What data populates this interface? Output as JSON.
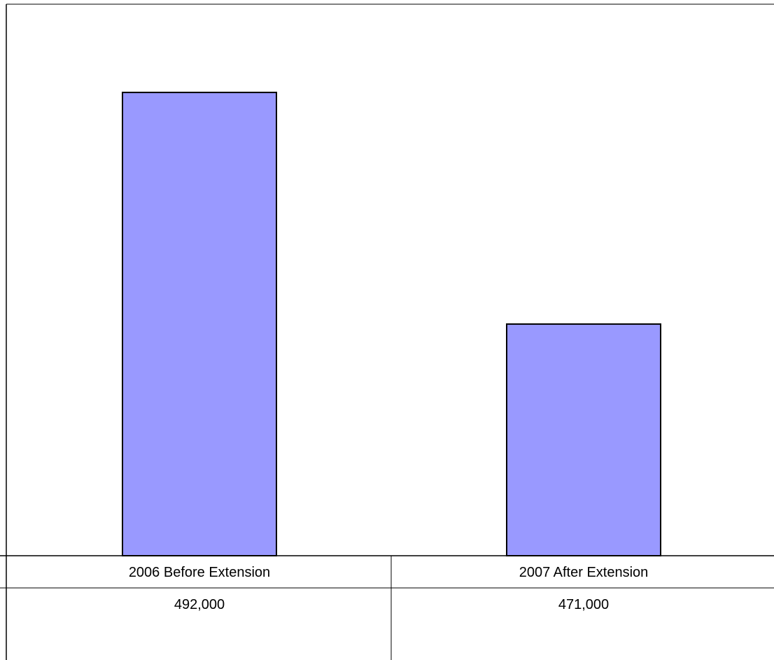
{
  "chart_data": {
    "type": "bar",
    "categories": [
      "2006 Before Extension",
      "2007 After Extension"
    ],
    "values": [
      492000,
      471000
    ],
    "value_labels": [
      "492,000",
      "471,000"
    ],
    "ylim": [
      450000,
      500000
    ],
    "grid": false,
    "legend": "none",
    "data_table": true,
    "bar_color": "#9999ff",
    "bar_stroke": "#000000"
  }
}
